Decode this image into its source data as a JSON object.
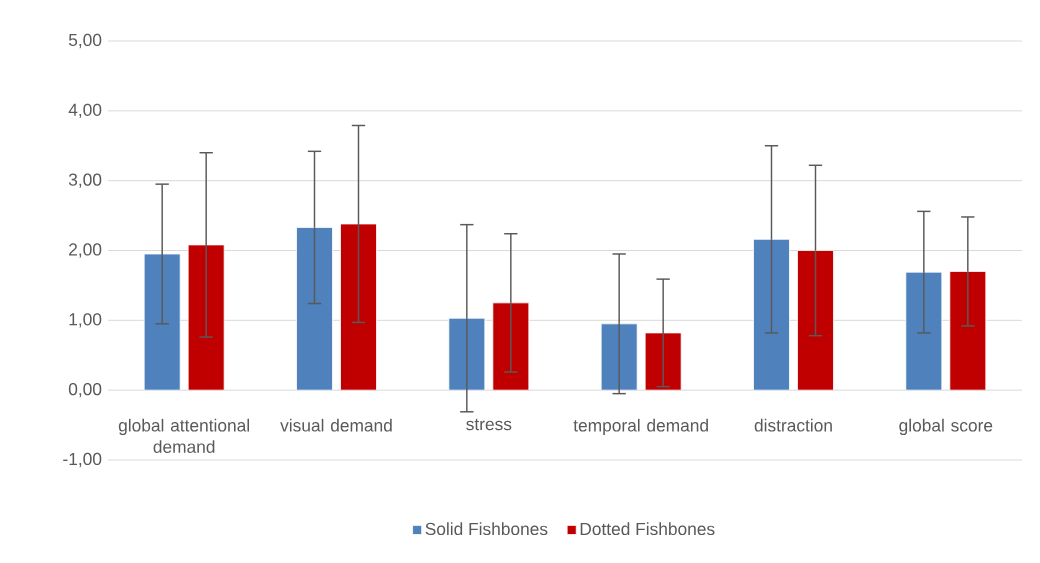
{
  "chart_data": {
    "type": "bar",
    "categories": [
      "global attentional demand",
      "visual demand",
      "stress",
      "temporal demand",
      "distraction",
      "global score"
    ],
    "series": [
      {
        "name": "Solid Fishbones",
        "color": "#4f81bd",
        "values": [
          1.95,
          2.33,
          1.03,
          0.95,
          2.16,
          1.69
        ],
        "errors": [
          1.0,
          1.09,
          1.34,
          1.0,
          1.34,
          0.87
        ]
      },
      {
        "name": "Dotted Fishbones",
        "color": "#c00000",
        "values": [
          2.08,
          2.38,
          1.25,
          0.82,
          2.0,
          1.7
        ],
        "errors": [
          1.32,
          1.41,
          0.99,
          0.77,
          1.22,
          0.78
        ]
      }
    ],
    "ylim": [
      -1,
      5
    ],
    "yticks": [
      {
        "value": -1,
        "label": "-1,00"
      },
      {
        "value": 0,
        "label": "0,00"
      },
      {
        "value": 1,
        "label": "1,00"
      },
      {
        "value": 2,
        "label": "2,00"
      },
      {
        "value": 3,
        "label": "3,00"
      },
      {
        "value": 4,
        "label": "4,00"
      },
      {
        "value": 5,
        "label": "5,00"
      }
    ],
    "grid": "y",
    "legend": "bottom"
  }
}
